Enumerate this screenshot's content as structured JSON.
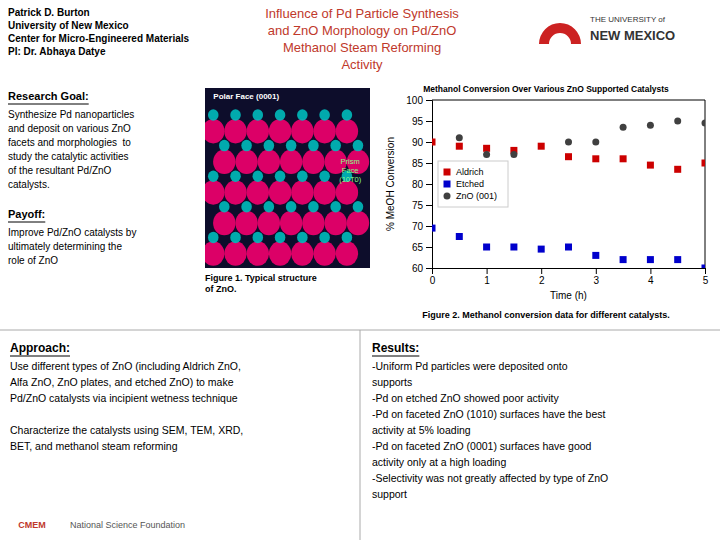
{
  "page": {
    "header": [
      "Patrick D. Burton",
      "University of New Mexico",
      "Center for Micro-Engineered Materials",
      "PI: Dr. Abhaya Datye"
    ],
    "title": "Influence of Pd Particle Synthesis\nand ZnO Morphology on Pd/ZnO\nMethanol Steam Reforming\nActivity",
    "title_color": "#C0392B",
    "logo_text": [
      "THE UNIVERSITY of",
      "NEW MEXICO"
    ],
    "logo_color": "#CC2222",
    "sections": [
      {
        "title": "Research Goal:",
        "text": "Synthesize Pd nanoparticles\nand deposit on various ZnO\nfacets and morphologies  to\nstudy the catalytic activities\nof the resultant Pd/ZnO\ncatalysts."
      },
      {
        "title": "Payoff:",
        "text": "Improve Pd/ZnO catalysts by\nultimately determining the\nrole of ZnO"
      },
      {
        "title": "Approach:",
        "text": "Use different types of ZnO (including Aldrich ZnO,\nAlfa ZnO, ZnO plates, and etched ZnO) to make\nPd/ZnO catalysts via incipient wetness technique\n\nCharacterize the catalysts using SEM, TEM, XRD,\nBET, and methanol steam reforming"
      },
      {
        "title": "Results:",
        "text": "-Uniform Pd particles were deposited onto\nsupports\n-Pd on etched ZnO showed poor activity\n-Pd on faceted ZnO (1010) surfaces have the best\nactivity at 5% loading\n-Pd on faceted ZnO (0001) surfaces have good\nactivity only at a high loading\n-Selectivity was not greatly affected by type of ZnO\nsupport"
      }
    ],
    "figure_captions": [
      "Figure 1. Typical structure\nof ZnO.",
      "Figure 2. Methanol conversion data for different catalysts."
    ],
    "figure_labels": [
      "Polar Face (0001)",
      "Prism\nFace\n(10T0)"
    ],
    "credits": [
      {
        "text": "CMEM",
        "color": "#C0392B"
      },
      {
        "text": "National Science Foundation",
        "color": "#555555"
      }
    ]
  },
  "chart_data": {
    "type": "scatter",
    "title": "Methanol Conversion Over Various ZnO Supported Catalysts",
    "x_label": "Time (h)",
    "y_label": "% MeOH Conversion",
    "xlim": [
      0,
      5
    ],
    "ylim": [
      60,
      100
    ],
    "xticks": [
      0,
      1,
      2,
      3,
      4,
      5
    ],
    "yticks": [
      60,
      65,
      70,
      75,
      80,
      85,
      90,
      95,
      100
    ],
    "grid": false,
    "legend": "center left",
    "series": [
      {
        "name": "Aldrich",
        "color": "#CC0000",
        "marker": "square",
        "x": [
          0,
          0.5,
          1.0,
          1.5,
          2.0,
          2.5,
          3.0,
          3.5,
          4.0,
          4.5,
          5.0
        ],
        "values": [
          90,
          89,
          88.5,
          88,
          89,
          86.5,
          86,
          86,
          84.5,
          83.5,
          85
        ]
      },
      {
        "name": "Etched",
        "color": "#0000CC",
        "marker": "square",
        "x": [
          0,
          0.5,
          1.0,
          1.5,
          2.0,
          2.5,
          3.0,
          3.5,
          4.0,
          4.5,
          5.0
        ],
        "values": [
          69.5,
          67.5,
          65,
          65,
          64.5,
          65,
          63,
          62,
          62,
          62,
          60
        ]
      },
      {
        "name": "ZnO (001)",
        "color": "#404040",
        "marker": "circle",
        "x": [
          0.5,
          1.0,
          1.5,
          2.5,
          3.0,
          3.5,
          4.0,
          4.5,
          5.0
        ],
        "values": [
          91,
          87,
          87,
          90,
          90,
          93.5,
          94,
          95,
          94.5
        ]
      }
    ]
  }
}
